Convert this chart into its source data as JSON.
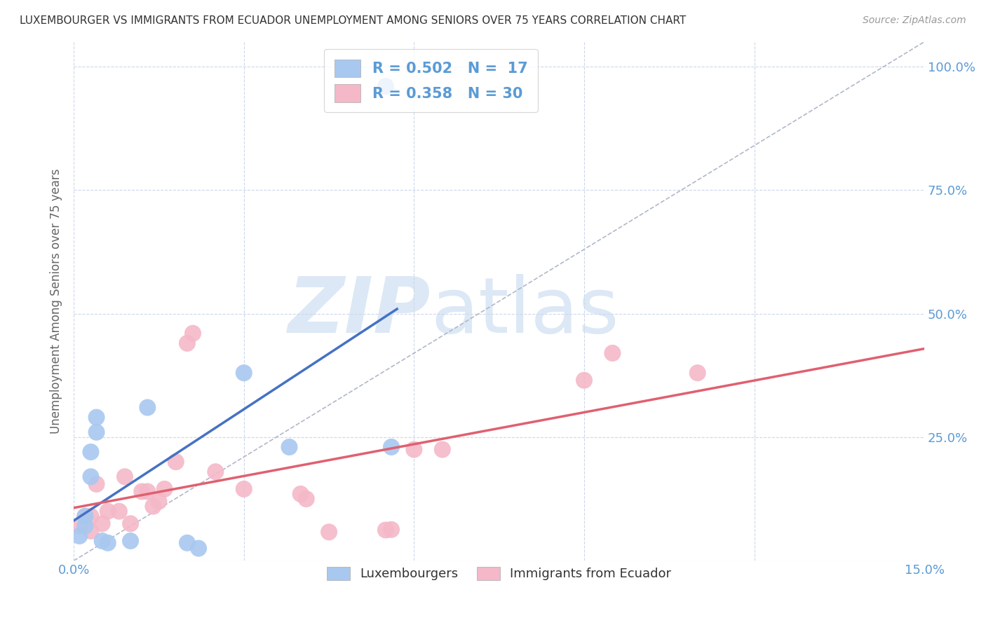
{
  "title": "LUXEMBOURGER VS IMMIGRANTS FROM ECUADOR UNEMPLOYMENT AMONG SENIORS OVER 75 YEARS CORRELATION CHART",
  "source": "Source: ZipAtlas.com",
  "ylabel": "Unemployment Among Seniors over 75 years",
  "xlim": [
    0.0,
    0.15
  ],
  "ylim": [
    0.0,
    1.05
  ],
  "xticks": [
    0.0,
    0.03,
    0.06,
    0.09,
    0.12,
    0.15
  ],
  "yticks": [
    0.0,
    0.25,
    0.5,
    0.75,
    1.0
  ],
  "yticklabels": [
    "",
    "25.0%",
    "50.0%",
    "75.0%",
    "100.0%"
  ],
  "tick_color": "#5b9bd5",
  "blue_color": "#a8c8f0",
  "pink_color": "#f4b8c8",
  "blue_line_color": "#4472c4",
  "pink_line_color": "#e06070",
  "ref_line_color": "#b0b8c8",
  "legend_text_color": "#5b9bd5",
  "blue_points_x": [
    0.001,
    0.002,
    0.002,
    0.003,
    0.003,
    0.004,
    0.004,
    0.005,
    0.006,
    0.01,
    0.013,
    0.02,
    0.022,
    0.03,
    0.038,
    0.055,
    0.056
  ],
  "blue_points_y": [
    0.05,
    0.09,
    0.07,
    0.22,
    0.17,
    0.26,
    0.29,
    0.04,
    0.036,
    0.04,
    0.31,
    0.036,
    0.025,
    0.38,
    0.23,
    0.96,
    0.23
  ],
  "pink_points_x": [
    0.001,
    0.002,
    0.003,
    0.003,
    0.004,
    0.005,
    0.006,
    0.008,
    0.009,
    0.01,
    0.012,
    0.013,
    0.014,
    0.015,
    0.016,
    0.018,
    0.02,
    0.021,
    0.025,
    0.03,
    0.04,
    0.041,
    0.045,
    0.055,
    0.056,
    0.06,
    0.065,
    0.09,
    0.095,
    0.11
  ],
  "pink_points_y": [
    0.07,
    0.09,
    0.06,
    0.09,
    0.155,
    0.075,
    0.1,
    0.1,
    0.17,
    0.075,
    0.14,
    0.14,
    0.11,
    0.12,
    0.145,
    0.2,
    0.44,
    0.46,
    0.18,
    0.145,
    0.135,
    0.125,
    0.058,
    0.062,
    0.063,
    0.225,
    0.225,
    0.365,
    0.42,
    0.38
  ],
  "background_color": "#ffffff",
  "grid_color": "#ccd8ea",
  "watermark_color": "#dce8f5"
}
